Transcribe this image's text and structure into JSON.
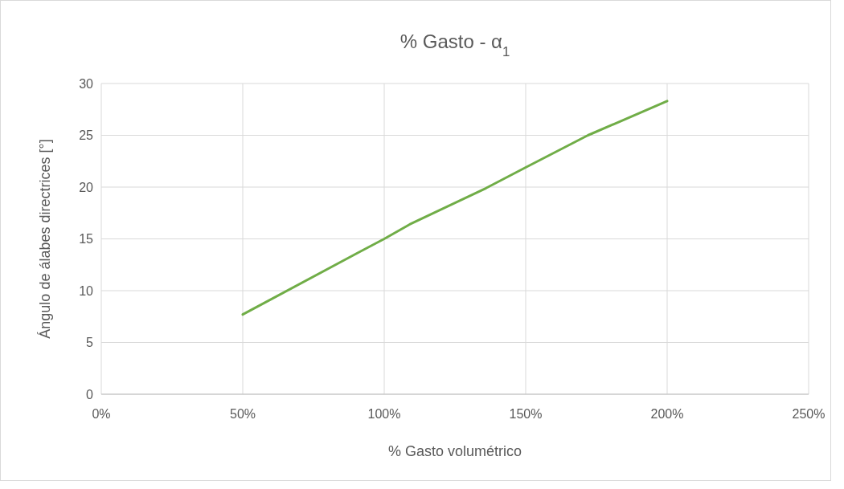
{
  "chart_data": {
    "type": "line",
    "title": "% Gasto - α$_{1}$",
    "xlabel": "% Gasto volumétrico",
    "ylabel": "Ángulo de álabes directrices [°]",
    "x": [
      50,
      91,
      100,
      109,
      136,
      150,
      172,
      200
    ],
    "series": [
      {
        "color": "#70ad47",
        "values": [
          7.7,
          13.7,
          15.0,
          16.4,
          19.9,
          21.9,
          25.0,
          28.3
        ]
      }
    ],
    "xlim": [
      0,
      250
    ],
    "xticks": [
      {
        "value": 0,
        "label": "0%"
      },
      {
        "value": 50,
        "label": "50%"
      },
      {
        "value": 100,
        "label": "100%"
      },
      {
        "value": 150,
        "label": "150%"
      },
      {
        "value": 200,
        "label": "200%"
      },
      {
        "value": 250,
        "label": "250%"
      }
    ],
    "ylim": [
      0,
      30
    ],
    "yticks": [
      0,
      5,
      10,
      15,
      20,
      25,
      30
    ],
    "grid": true,
    "marker": "none",
    "line_style": "solid"
  }
}
